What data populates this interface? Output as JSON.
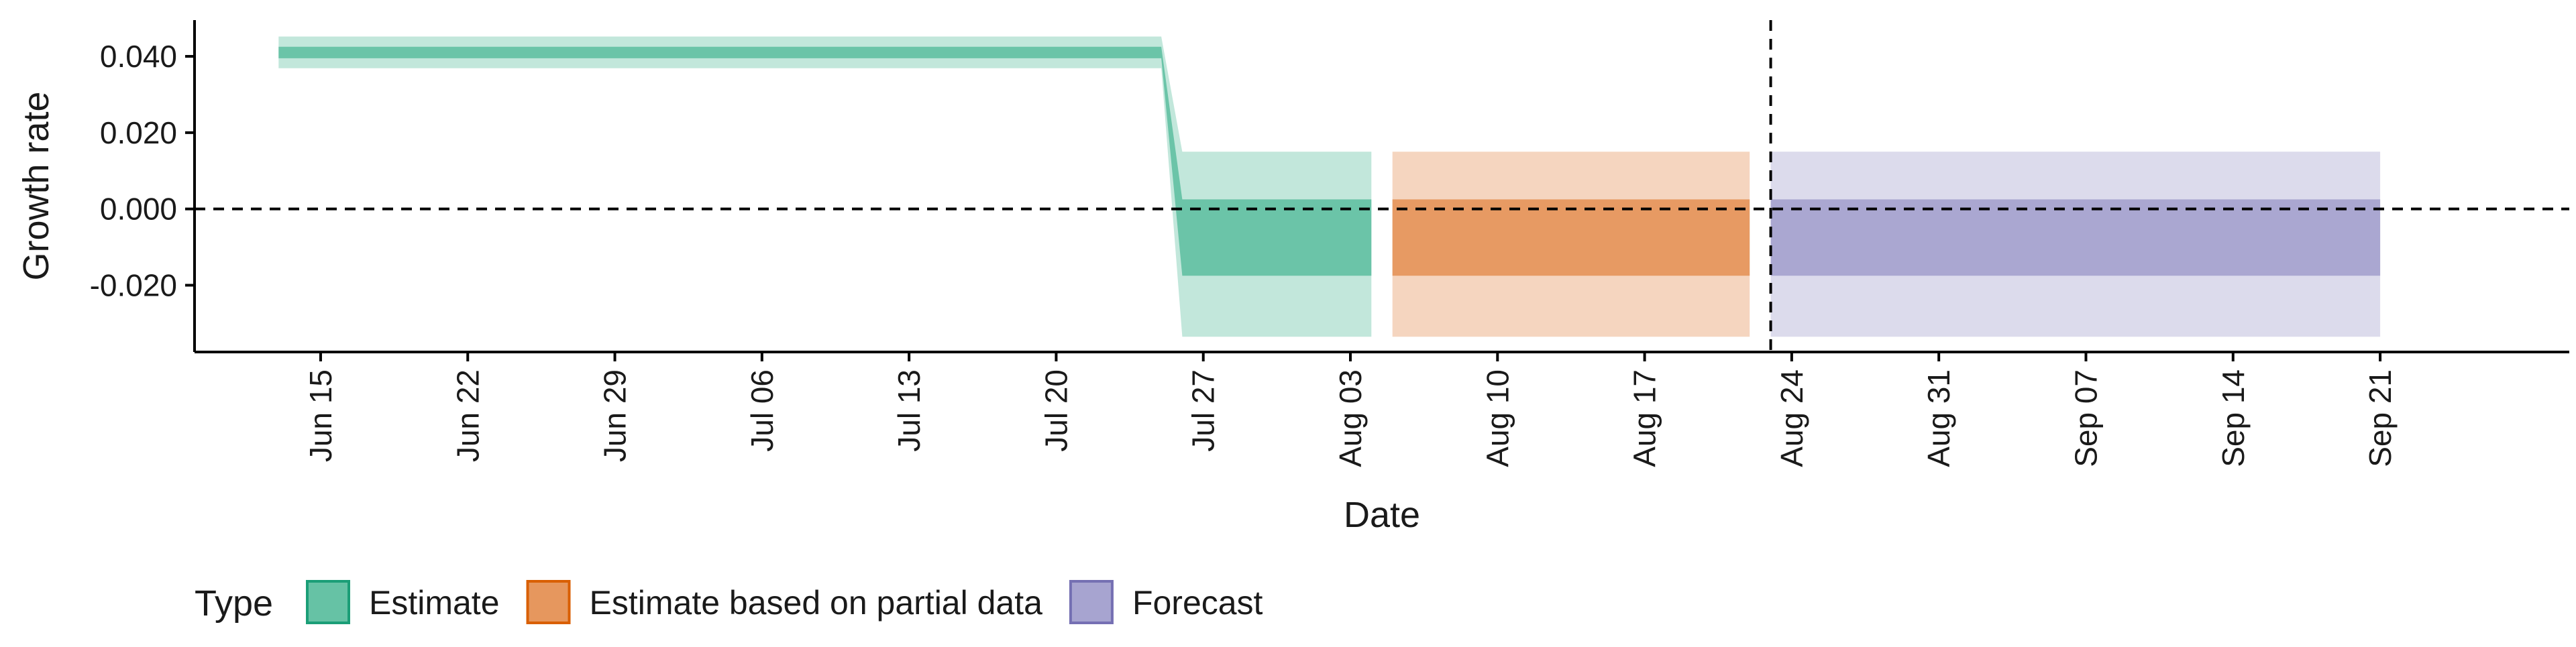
{
  "chart_data": {
    "type": "area",
    "xlabel": "Date",
    "ylabel": "Growth rate",
    "x_tick_labels": [
      "Jun 15",
      "Jun 22",
      "Jun 29",
      "Jul 06",
      "Jul 13",
      "Jul 20",
      "Jul 27",
      "Aug 03",
      "Aug 10",
      "Aug 17",
      "Aug 24",
      "Aug 31",
      "Sep 07",
      "Sep 14",
      "Sep 21"
    ],
    "x_tick_dates": [
      "2020-06-15",
      "2020-06-22",
      "2020-06-29",
      "2020-07-06",
      "2020-07-13",
      "2020-07-20",
      "2020-07-27",
      "2020-08-03",
      "2020-08-10",
      "2020-08-17",
      "2020-08-24",
      "2020-08-31",
      "2020-09-07",
      "2020-09-14",
      "2020-09-21"
    ],
    "y_ticks": [
      -0.02,
      0.0,
      0.02,
      0.04
    ],
    "y_tick_labels": [
      "-0.020",
      "0.000",
      "0.020",
      "0.040"
    ],
    "xlim": [
      "2020-06-09",
      "2020-09-30"
    ],
    "ylim": [
      -0.0375,
      0.0495
    ],
    "reference_lines": {
      "horizontal_y": 0.0,
      "vertical_x": "2020-08-23",
      "style": "dashed"
    },
    "legend": {
      "title": "Type",
      "position": "bottom-left",
      "entries": [
        "Estimate",
        "Estimate based on partial data",
        "Forecast"
      ]
    },
    "grid": false,
    "series": [
      {
        "name": "Estimate",
        "color": "#1b9e77",
        "fill": "#66c2a5",
        "points": [
          {
            "x": "2020-06-13",
            "lower_90": 0.0369,
            "lower_50": 0.0395,
            "upper_50": 0.0425,
            "upper_90": 0.0452
          },
          {
            "x": "2020-07-25",
            "lower_90": 0.0369,
            "lower_50": 0.0395,
            "upper_50": 0.0425,
            "upper_90": 0.0452
          },
          {
            "x": "2020-07-26",
            "lower_90": -0.0335,
            "lower_50": -0.0175,
            "upper_50": 0.0025,
            "upper_90": 0.015
          },
          {
            "x": "2020-08-04",
            "lower_90": -0.0335,
            "lower_50": -0.0175,
            "upper_50": 0.0025,
            "upper_90": 0.015
          }
        ]
      },
      {
        "name": "Estimate based on partial data",
        "color": "#d95f02",
        "fill": "#e6975e",
        "points": [
          {
            "x": "2020-08-05",
            "lower_90": -0.0335,
            "lower_50": -0.0175,
            "upper_50": 0.0025,
            "upper_90": 0.015
          },
          {
            "x": "2020-08-22",
            "lower_90": -0.0335,
            "lower_50": -0.0175,
            "upper_50": 0.0025,
            "upper_90": 0.015
          }
        ]
      },
      {
        "name": "Forecast",
        "color": "#7570b3",
        "fill": "#a7a4d0",
        "points": [
          {
            "x": "2020-08-23",
            "lower_90": -0.0335,
            "lower_50": -0.0175,
            "upper_50": 0.0025,
            "upper_90": 0.015
          },
          {
            "x": "2020-09-21",
            "lower_90": -0.0335,
            "lower_50": -0.0175,
            "upper_50": 0.0025,
            "upper_90": 0.015
          }
        ]
      }
    ]
  }
}
